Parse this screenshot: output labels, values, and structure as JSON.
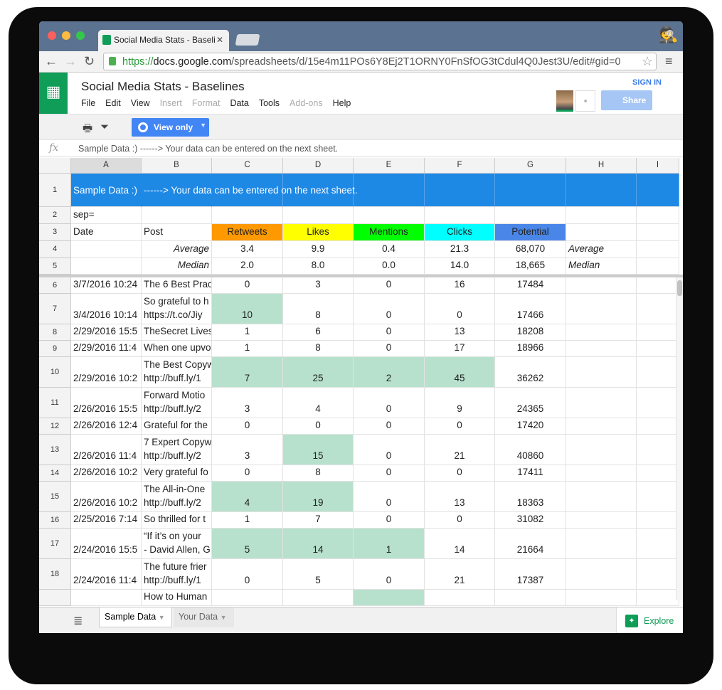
{
  "browser": {
    "tab_title": "Social Media Stats - Baseli",
    "url_scheme": "https://",
    "url_host": "docs.google.com",
    "url_path": "/spreadsheets/d/15e4m11POs6Y8Ej2T1ORNY0FnSfOG3tCdul4Q0Jest3U/edit#gid=0"
  },
  "doc": {
    "title": "Social Media Stats - Baselines",
    "sign_in": "SIGN IN",
    "share": "Share",
    "menu": [
      {
        "label": "File",
        "enabled": true
      },
      {
        "label": "Edit",
        "enabled": true
      },
      {
        "label": "View",
        "enabled": true
      },
      {
        "label": "Insert",
        "enabled": false
      },
      {
        "label": "Format",
        "enabled": false
      },
      {
        "label": "Data",
        "enabled": true
      },
      {
        "label": "Tools",
        "enabled": true
      },
      {
        "label": "Add-ons",
        "enabled": false
      },
      {
        "label": "Help",
        "enabled": true
      }
    ]
  },
  "toolbar": {
    "view_only": "View only"
  },
  "formula_bar": {
    "fx": "fx",
    "value": "Sample Data :)  ------> Your data can be entered on the next sheet."
  },
  "colors": {
    "banner": "#1e88e5",
    "retweets": "#ff9900",
    "likes": "#ffff00",
    "mentions": "#00ff00",
    "clicks": "#00ffff",
    "potential": "#4a86e8",
    "highlight": "#b7e1cd"
  },
  "columns": [
    "A",
    "B",
    "C",
    "D",
    "E",
    "F",
    "G",
    "H",
    "I"
  ],
  "header_rows": {
    "r1": {
      "a": "Sample Data :)",
      "b": "------> Your data can be entered on the next sheet."
    },
    "r2": {
      "a": "sep="
    },
    "r3": {
      "a": "Date",
      "b": "Post",
      "c": "Retweets",
      "d": "Likes",
      "e": "Mentions",
      "f": "Clicks",
      "g": "Potential"
    },
    "r4": {
      "b": "Average",
      "c": "3.4",
      "d": "9.9",
      "e": "0.4",
      "f": "21.3",
      "g": "68,070",
      "h": "Average"
    },
    "r5": {
      "b": "Median",
      "c": "2.0",
      "d": "8.0",
      "e": "0.0",
      "f": "14.0",
      "g": "18,665",
      "h": "Median"
    }
  },
  "rows": [
    {
      "n": "6",
      "date": "3/7/2016 10:24",
      "post": [
        "The 6 Best Prac"
      ],
      "rt": "0",
      "likes": "3",
      "mentions": "0",
      "clicks": "16",
      "potential": "17484",
      "hl": []
    },
    {
      "n": "7",
      "date": "3/4/2016 10:14",
      "post": [
        "So grateful to h",
        "https://t.co/Jiy"
      ],
      "rt": "10",
      "likes": "8",
      "mentions": "0",
      "clicks": "0",
      "potential": "17466",
      "hl": [
        "rt"
      ]
    },
    {
      "n": "8",
      "date": "2/29/2016 15:5",
      "post": [
        "TheSecret Lives"
      ],
      "rt": "1",
      "likes": "6",
      "mentions": "0",
      "clicks": "13",
      "potential": "18208",
      "hl": []
    },
    {
      "n": "9",
      "date": "2/29/2016 11:4",
      "post": [
        "When one upvo"
      ],
      "rt": "1",
      "likes": "8",
      "mentions": "0",
      "clicks": "17",
      "potential": "18966",
      "hl": []
    },
    {
      "n": "10",
      "date": "2/29/2016 10:2",
      "post": [
        "The Best Copyw",
        "http://buff.ly/1"
      ],
      "rt": "7",
      "likes": "25",
      "mentions": "2",
      "clicks": "45",
      "potential": "36262",
      "hl": [
        "rt",
        "likes",
        "mentions",
        "clicks"
      ]
    },
    {
      "n": "11",
      "date": "2/26/2016 15:5",
      "post": [
        "Forward Motio",
        "http://buff.ly/2"
      ],
      "rt": "3",
      "likes": "4",
      "mentions": "0",
      "clicks": "9",
      "potential": "24365",
      "hl": []
    },
    {
      "n": "12",
      "date": "2/26/2016 12:4",
      "post": [
        "Grateful for the"
      ],
      "rt": "0",
      "likes": "0",
      "mentions": "0",
      "clicks": "0",
      "potential": "17420",
      "hl": []
    },
    {
      "n": "13",
      "date": "2/26/2016 11:4",
      "post": [
        "7 Expert Copyw",
        "http://buff.ly/2"
      ],
      "rt": "3",
      "likes": "15",
      "mentions": "0",
      "clicks": "21",
      "potential": "40860",
      "hl": [
        "likes"
      ]
    },
    {
      "n": "14",
      "date": "2/26/2016 10:2",
      "post": [
        "Very grateful fo"
      ],
      "rt": "0",
      "likes": "8",
      "mentions": "0",
      "clicks": "0",
      "potential": "17411",
      "hl": []
    },
    {
      "n": "15",
      "date": "2/26/2016 10:2",
      "post": [
        "The All-in-One",
        "http://buff.ly/2"
      ],
      "rt": "4",
      "likes": "19",
      "mentions": "0",
      "clicks": "13",
      "potential": "18363",
      "hl": [
        "rt",
        "likes"
      ]
    },
    {
      "n": "16",
      "date": "2/25/2016 7:14",
      "post": [
        "So thrilled for t"
      ],
      "rt": "1",
      "likes": "7",
      "mentions": "0",
      "clicks": "0",
      "potential": "31082",
      "hl": []
    },
    {
      "n": "17",
      "date": "2/24/2016 15:5",
      "post": [
        "“If it’s on your",
        "- David Allen, G"
      ],
      "rt": "5",
      "likes": "14",
      "mentions": "1",
      "clicks": "14",
      "potential": "21664",
      "hl": [
        "rt",
        "likes",
        "mentions"
      ]
    },
    {
      "n": "18",
      "date": "2/24/2016 11:4",
      "post": [
        "The future frier",
        "http://buff.ly/1"
      ],
      "rt": "0",
      "likes": "5",
      "mentions": "0",
      "clicks": "21",
      "potential": "17387",
      "hl": []
    },
    {
      "n": "",
      "date": "",
      "post": [
        "How to Human"
      ],
      "rt": "",
      "likes": "",
      "mentions": "",
      "clicks": "",
      "potential": "",
      "hl": [
        "mentions"
      ]
    }
  ],
  "sheets": {
    "tabs": [
      "Sample Data",
      "Your Data"
    ],
    "active": 0,
    "explore": "Explore"
  }
}
